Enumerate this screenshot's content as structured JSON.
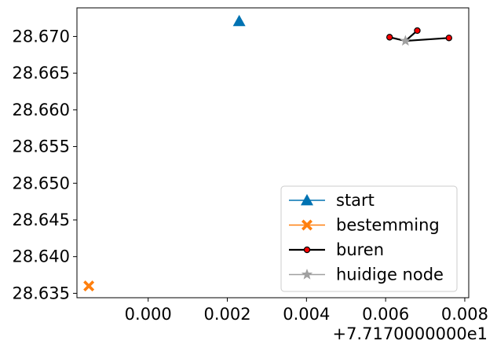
{
  "chart_data": {
    "type": "scatter",
    "title": "",
    "xlabel": "",
    "ylabel": "",
    "x_offset_label": "+7.7170000000e1",
    "xlim": [
      -0.0018,
      0.0081
    ],
    "ylim": [
      28.6344,
      28.6739
    ],
    "x_ticks": [
      {
        "value": 0.0,
        "label": "0.000"
      },
      {
        "value": 0.002,
        "label": "0.002"
      },
      {
        "value": 0.004,
        "label": "0.004"
      },
      {
        "value": 0.006,
        "label": "0.006"
      },
      {
        "value": 0.008,
        "label": "0.008"
      }
    ],
    "y_ticks": [
      {
        "value": 28.635,
        "label": "28.635"
      },
      {
        "value": 28.64,
        "label": "28.640"
      },
      {
        "value": 28.645,
        "label": "28.645"
      },
      {
        "value": 28.65,
        "label": "28.650"
      },
      {
        "value": 28.655,
        "label": "28.655"
      },
      {
        "value": 28.66,
        "label": "28.660"
      },
      {
        "value": 28.665,
        "label": "28.665"
      },
      {
        "value": 28.67,
        "label": "28.670"
      }
    ],
    "grid": false,
    "legend_position": "lower-right",
    "series": [
      {
        "name": "start",
        "marker": "triangle",
        "color": "#0072b2",
        "connected": false,
        "points": [
          [
            0.0023,
            28.6721
          ]
        ]
      },
      {
        "name": "bestemming",
        "marker": "x-filled",
        "color": "#ff7f0e",
        "connected": false,
        "points": [
          [
            -0.0015,
            28.636
          ]
        ]
      },
      {
        "name": "buren",
        "marker": "circle",
        "color": "#000000",
        "marker_fill": "#ff0000",
        "connected": true,
        "segments": [
          [
            [
              0.0061,
              28.6699
            ],
            [
              0.0065,
              28.6694
            ]
          ],
          [
            [
              0.0065,
              28.6694
            ],
            [
              0.0068,
              28.6708
            ]
          ],
          [
            [
              0.0065,
              28.6694
            ],
            [
              0.0076,
              28.6698
            ]
          ]
        ],
        "points": [
          [
            0.0061,
            28.6699
          ],
          [
            0.0068,
            28.6708
          ],
          [
            0.0076,
            28.6698
          ]
        ]
      },
      {
        "name": "huidige node",
        "marker": "star",
        "color": "#a0a0a0",
        "connected": false,
        "points": [
          [
            0.0065,
            28.6694
          ]
        ]
      }
    ]
  }
}
